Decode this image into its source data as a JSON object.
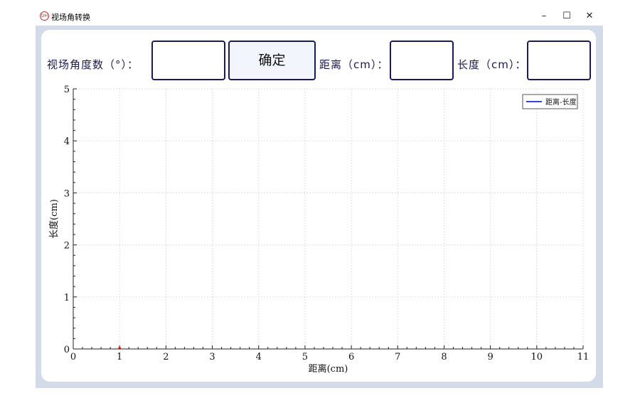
{
  "window": {
    "title": "视场角转换",
    "icon": "app-logo-icon",
    "controls": [
      "minimize",
      "maximize",
      "close"
    ]
  },
  "form": {
    "angle_label": "视场角度数（°）：",
    "angle_value": "",
    "confirm_label": "确定",
    "distance_label": "距离（cm）：",
    "distance_value": "",
    "length_label": "长度（cm）：",
    "length_value": ""
  },
  "chart_data": {
    "type": "line",
    "xlabel": "距离(cm)",
    "ylabel": "长度(cm)",
    "xlim": [
      0,
      11
    ],
    "ylim": [
      0,
      5
    ],
    "xticks": [
      0,
      1,
      2,
      3,
      4,
      5,
      6,
      7,
      8,
      9,
      10,
      11
    ],
    "yticks": [
      0,
      1,
      2,
      3,
      4,
      5
    ],
    "grid": true,
    "legend": "top-right",
    "series": [
      {
        "name": "距离-长度",
        "color": "#2a4bd7",
        "points": []
      }
    ],
    "marker": {
      "x": 1,
      "y": 0,
      "color": "#e00000"
    }
  }
}
